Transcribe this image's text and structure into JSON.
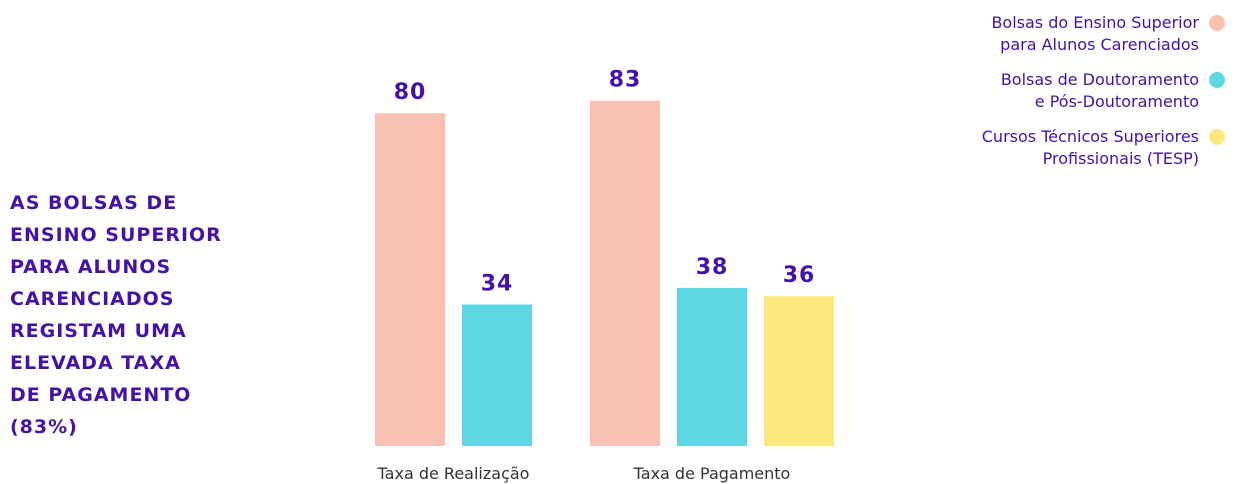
{
  "chart_data": {
    "type": "bar",
    "annotation": "AS BOLSAS DE\nENSINO SUPERIOR\nPARA ALUNOS\nCARENCIADOS\nREGISTAM UMA\nELEVADA TAXA\nDE PAGAMENTO\n(83%)",
    "categories": [
      "Taxa de Realização",
      "Taxa de Pagamento"
    ],
    "series": [
      {
        "name": "Bolsas do Ensino Superior\npara Alunos Carenciados",
        "color": "#f9c1b1",
        "values": [
          80,
          83
        ]
      },
      {
        "name": "Bolsas de Doutoramento\ne Pós-Doutoramento",
        "color": "#5fd6e4",
        "values": [
          34,
          38
        ]
      },
      {
        "name": "Cursos Técnicos Superiores\nProfissionais (TESP)",
        "color": "#fde77c",
        "values": [
          null,
          36
        ]
      }
    ],
    "ylim": [
      0,
      100
    ]
  }
}
